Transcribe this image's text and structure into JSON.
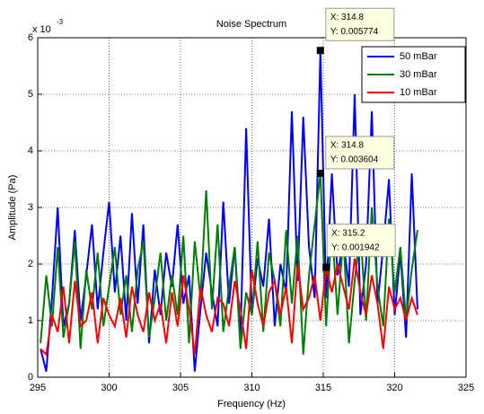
{
  "chart_data": {
    "type": "line",
    "title": "Noise Spectrum",
    "x_label": "Frequency (Hz)",
    "y_label": "Amplitude (Pa)",
    "y_exponent": {
      "base": "x 10",
      "power": "-3"
    },
    "xlim": [
      295,
      325
    ],
    "xticks": [
      295,
      300,
      305,
      310,
      315,
      320,
      325
    ],
    "ylim": [
      0,
      0.006
    ],
    "yticks": [
      {
        "value": 0,
        "label": "0"
      },
      {
        "value": 0.001,
        "label": "1"
      },
      {
        "value": 0.002,
        "label": "2"
      },
      {
        "value": 0.003,
        "label": "3"
      },
      {
        "value": 0.004,
        "label": "4"
      },
      {
        "value": 0.005,
        "label": "5"
      },
      {
        "value": 0.006,
        "label": "6"
      }
    ],
    "grid": true,
    "legend": "upper right",
    "x": [
      295.2,
      295.6,
      296.0,
      296.4,
      296.8,
      297.2,
      297.6,
      298.0,
      298.4,
      298.8,
      299.2,
      299.6,
      300.0,
      300.4,
      300.8,
      301.2,
      301.6,
      302.0,
      302.4,
      302.8,
      303.2,
      303.6,
      304.0,
      304.4,
      304.8,
      305.2,
      305.6,
      306.0,
      306.4,
      306.8,
      307.2,
      307.6,
      308.0,
      308.4,
      308.8,
      309.2,
      309.6,
      310.0,
      310.4,
      310.8,
      311.2,
      311.6,
      312.0,
      312.4,
      312.8,
      313.2,
      313.6,
      314.0,
      314.4,
      314.8,
      315.2,
      315.6,
      316.0,
      316.4,
      316.8,
      317.2,
      317.6,
      318.0,
      318.4,
      318.8,
      319.2,
      319.6,
      320.0,
      320.4,
      320.8,
      321.2,
      321.6
    ],
    "series": [
      {
        "name": "50 mBar",
        "color": "#0000ff",
        "values": [
          0.0005,
          0.0001,
          0.0014,
          0.003,
          0.0009,
          0.0013,
          0.0026,
          0.001,
          0.0018,
          0.0027,
          0.0012,
          0.0022,
          0.0031,
          0.0015,
          0.0025,
          0.001,
          0.0029,
          0.0013,
          0.0027,
          0.0006,
          0.0019,
          0.0011,
          0.0022,
          0.0016,
          0.0027,
          0.0013,
          0.0018,
          0.0001,
          0.0012,
          0.0022,
          0.0015,
          0.0009,
          0.0031,
          0.0013,
          0.0023,
          0.0007,
          0.0044,
          0.0011,
          0.0021,
          0.0016,
          0.0028,
          0.0009,
          0.002,
          0.0015,
          0.0047,
          0.0017,
          0.0046,
          0.0023,
          0.0014,
          0.005774,
          0.0014,
          0.0036,
          0.0018,
          0.0024,
          0.0016,
          0.005,
          0.0011,
          0.002,
          0.0047,
          0.0013,
          0.0023,
          0.0035,
          0.0011,
          0.0022,
          0.0007,
          0.0036,
          0.0012
        ]
      },
      {
        "name": "30 mBar",
        "color": "#008000",
        "values": [
          0.0006,
          0.0018,
          0.0009,
          0.0023,
          0.0007,
          0.0013,
          0.0024,
          0.0005,
          0.0019,
          0.0012,
          0.0022,
          0.0009,
          0.0016,
          0.0023,
          0.0011,
          0.0018,
          0.0008,
          0.0019,
          0.0024,
          0.0007,
          0.0014,
          0.0022,
          0.001,
          0.0018,
          0.0011,
          0.0025,
          0.0006,
          0.0024,
          0.0014,
          0.0033,
          0.0012,
          0.0027,
          0.0008,
          0.0016,
          0.0023,
          0.0005,
          0.0015,
          0.0011,
          0.0024,
          0.0008,
          0.0022,
          0.0017,
          0.0009,
          0.0026,
          0.0013,
          0.0025,
          0.0004,
          0.0018,
          0.0027,
          0.003604,
          0.0009,
          0.0027,
          0.0011,
          0.0025,
          0.0006,
          0.0017,
          0.0026,
          0.001,
          0.003,
          0.0016,
          0.0009,
          0.0028,
          0.0015,
          0.0023,
          0.001,
          0.0019,
          0.0026
        ]
      },
      {
        "name": "10 mBar",
        "color": "#ff0000",
        "values": [
          0.0005,
          0.0004,
          0.0011,
          0.0008,
          0.0016,
          0.0006,
          0.0017,
          0.0009,
          0.001,
          0.0015,
          0.0006,
          0.0014,
          0.0011,
          0.0009,
          0.0014,
          0.0007,
          0.0016,
          0.0011,
          0.0008,
          0.0015,
          0.001,
          0.0013,
          0.0006,
          0.0015,
          0.0009,
          0.0018,
          0.0012,
          0.0004,
          0.0016,
          0.0011,
          0.0008,
          0.0014,
          0.0013,
          0.0009,
          0.0017,
          0.0012,
          0.0005,
          0.0019,
          0.0013,
          0.0009,
          0.0015,
          0.0017,
          0.0011,
          0.0016,
          0.0006,
          0.002,
          0.0012,
          0.0014,
          0.0018,
          0.001,
          0.001942,
          0.0015,
          0.002,
          0.0016,
          0.0012,
          0.0021,
          0.0015,
          0.0011,
          0.0018,
          0.0013,
          0.0005,
          0.0016,
          0.0012,
          0.0014,
          0.001,
          0.0014,
          0.0011
        ]
      }
    ],
    "datatips": [
      {
        "x": 314.8,
        "y": 0.005774,
        "text": [
          "X: 314.8",
          "Y: 0.005774"
        ]
      },
      {
        "x": 314.8,
        "y": 0.003604,
        "text": [
          "X: 314.8",
          "Y: 0.003604"
        ]
      },
      {
        "x": 315.2,
        "y": 0.001942,
        "text": [
          "X: 315.2",
          "Y: 0.001942"
        ]
      }
    ]
  }
}
